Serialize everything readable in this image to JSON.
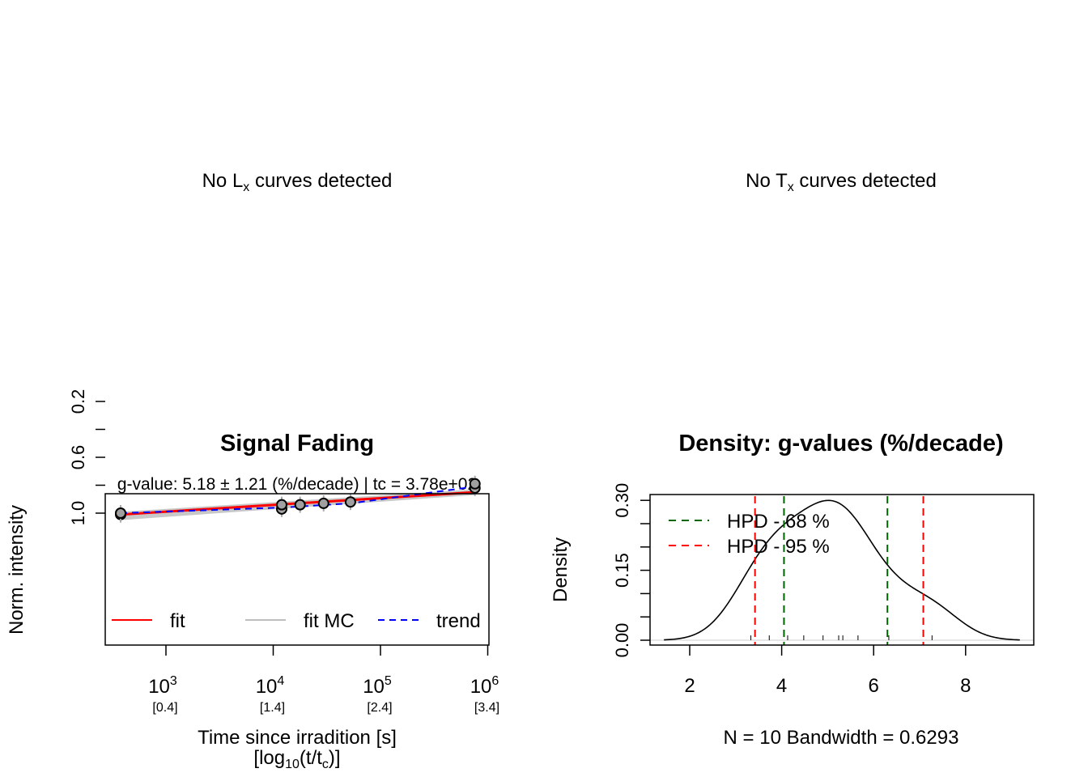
{
  "panels": {
    "lx": {
      "text_pre": "No L",
      "sub": "x",
      "text_post": " curves detected"
    },
    "tx": {
      "text_pre": "No T",
      "sub": "x",
      "text_post": " curves detected"
    }
  },
  "chart_data": [
    {
      "type": "scatter",
      "title": "Signal Fading",
      "subtitle": "g-value: 5.18 ± 1.21 (%/decade) | tc = 3.78e+02",
      "xlabel": "Time since irradition [s]",
      "xlabel2": {
        "pre": "[log",
        "sub1": "10",
        "mid": "(t/t",
        "sub2": "c",
        "post": ")]"
      },
      "ylabel": "Norm. intensity",
      "x_scale": "log10",
      "xlim_log10": [
        2.44,
        6.02
      ],
      "ylim": [
        0.05,
        1.1
      ],
      "x_ticks": [
        {
          "base": "10",
          "exp": "3",
          "log": 3,
          "sub": "[0.4]"
        },
        {
          "base": "10",
          "exp": "4",
          "log": 4,
          "sub": "[1.4]"
        },
        {
          "base": "10",
          "exp": "5",
          "log": 5,
          "sub": "[2.4]"
        },
        {
          "base": "10",
          "exp": "6",
          "log": 6,
          "sub": "[3.4]"
        }
      ],
      "y_ticks": [
        0.2,
        0.4,
        0.6,
        0.8,
        1.0
      ],
      "y_tick_labels": [
        "0.2",
        "0.6",
        "1.0"
      ],
      "points": [
        {
          "t": 378,
          "y": 1.01
        },
        {
          "t": 378,
          "y": 1.0
        },
        {
          "t": 12000,
          "y": 0.97
        },
        {
          "t": 12000,
          "y": 0.94
        },
        {
          "t": 17800,
          "y": 0.94
        },
        {
          "t": 29500,
          "y": 0.93
        },
        {
          "t": 52500,
          "y": 0.92
        },
        {
          "t": 760000,
          "y": 0.82
        },
        {
          "t": 760000,
          "y": 0.79
        }
      ],
      "fit": {
        "t": [
          378,
          760000
        ],
        "y": [
          1.01,
          0.85
        ]
      },
      "fit_mc_band": {
        "t": [
          378,
          760000
        ],
        "upper": [
          1.05,
          0.87
        ],
        "lower": [
          0.99,
          0.83
        ]
      },
      "trend": {
        "t": [
          378,
          12000,
          52500,
          760000
        ],
        "y": [
          1.0,
          0.96,
          0.93,
          0.81
        ]
      },
      "legend": [
        {
          "label": "fit",
          "color": "#ff0000",
          "style": "solid"
        },
        {
          "label": "fit MC",
          "color": "#bebebe",
          "style": "solid"
        },
        {
          "label": "trend",
          "color": "#0000ff",
          "style": "dashed"
        }
      ],
      "legend_position": "bottom"
    },
    {
      "type": "line",
      "title": "Density: g-values (%/decade)",
      "xlabel": "N = 10   Bandwidth = 0.6293",
      "ylabel": "Density",
      "xlim": [
        1.13,
        9.49
      ],
      "ylim": [
        -0.011,
        0.31
      ],
      "x_ticks": [
        2,
        4,
        6,
        8
      ],
      "y_ticks": [
        0.0,
        0.05,
        0.1,
        0.15,
        0.2,
        0.25,
        0.3
      ],
      "y_tick_labels": [
        "0.00",
        "0.15",
        "0.30"
      ],
      "bandwidth": 0.6293,
      "samples": [
        3.33,
        3.73,
        4.13,
        4.48,
        4.9,
        5.24,
        5.33,
        5.66,
        6.33,
        7.27
      ],
      "density_range": [
        1.44,
        9.18
      ],
      "hpd68": [
        4.05,
        6.3
      ],
      "hpd95": [
        3.42,
        7.08
      ],
      "legend": [
        {
          "label": "HPD - 68 %",
          "color": "#006400"
        },
        {
          "label": "HPD - 95 %",
          "color": "#ff0000"
        }
      ],
      "legend_position": "top-left"
    }
  ]
}
